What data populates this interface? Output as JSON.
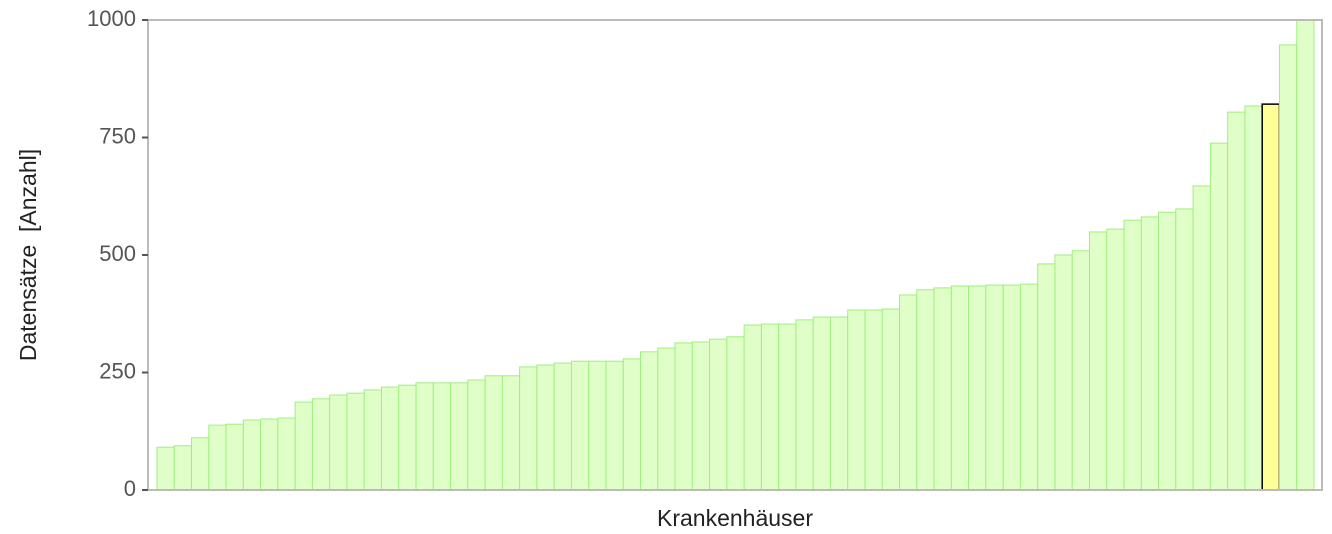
{
  "chart_data": {
    "type": "bar",
    "xlabel": "Krankenhäuser",
    "ylabel": "Datensätze  [Anzahl]",
    "values": [
      91,
      94,
      111,
      138,
      140,
      149,
      151,
      153,
      187,
      194,
      202,
      206,
      213,
      219,
      223,
      228,
      228,
      228,
      234,
      243,
      243,
      262,
      266,
      270,
      274,
      274,
      274,
      279,
      294,
      302,
      313,
      315,
      321,
      326,
      351,
      353,
      353,
      362,
      368,
      368,
      383,
      383,
      385,
      415,
      426,
      430,
      434,
      434,
      436,
      436,
      438,
      481,
      500,
      509,
      549,
      555,
      574,
      581,
      591,
      598,
      647,
      738,
      804,
      817,
      821,
      947,
      1000
    ],
    "color": "#e0ffc8",
    "edge_color": "#9fef7f",
    "highlight": {
      "index": 64,
      "color": "#ffff99",
      "edge_color": "#000000"
    },
    "ylim": [
      0,
      1000
    ],
    "yticks": [
      0,
      250,
      500,
      750,
      1000
    ]
  }
}
